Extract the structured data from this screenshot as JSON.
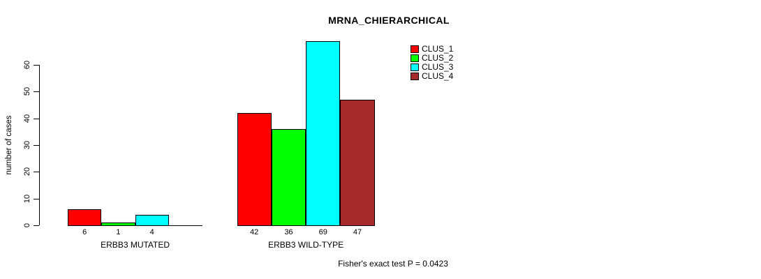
{
  "page": {
    "background": "#FFFFFF"
  },
  "chart_data": {
    "type": "bar",
    "grouped": true,
    "title": "MRNA_CHIERARCHICAL",
    "xlabel": "",
    "ylabel": "number of cases",
    "categories": [
      "ERBB3 MUTATED",
      "ERBB3 WILD-TYPE"
    ],
    "series": [
      {
        "name": "CLUS_1",
        "color": "#FF0000",
        "values": [
          6,
          42
        ]
      },
      {
        "name": "CLUS_2",
        "color": "#00FF00",
        "values": [
          1,
          36
        ]
      },
      {
        "name": "CLUS_3",
        "color": "#00FFFF",
        "values": [
          4,
          69
        ]
      },
      {
        "name": "CLUS_4",
        "color": "#A52A2A",
        "values": [
          0,
          47
        ]
      }
    ],
    "bar_value_labels": [
      [
        "6",
        "1",
        "4",
        ""
      ],
      [
        "42",
        "36",
        "69",
        "47"
      ]
    ],
    "yticks": [
      0,
      10,
      20,
      30,
      40,
      50,
      60
    ],
    "ylim": [
      0,
      69
    ],
    "grid": false,
    "legend_position": "top-right",
    "annotation": "Fisher's exact test P = 0.0423"
  }
}
